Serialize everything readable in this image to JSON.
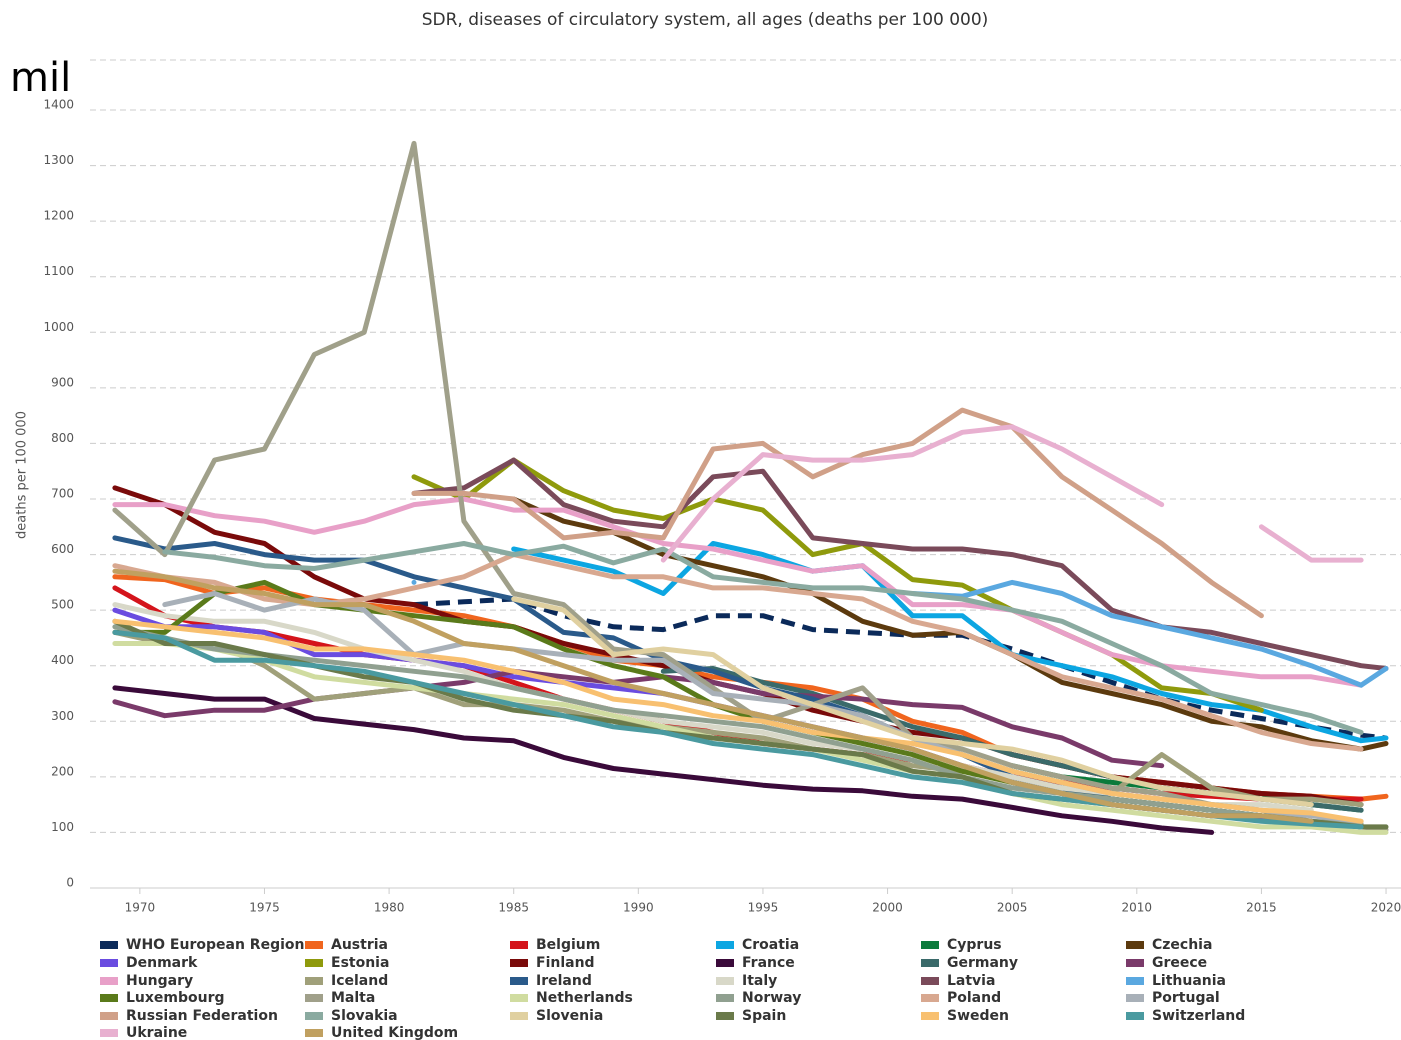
{
  "chart_data": {
    "type": "line",
    "title": "SDR, diseases of circulatory system, all ages (deaths per 100 000)",
    "y_label": "deaths per 100 000",
    "annotation": "mil",
    "xlim": [
      1968,
      2020.6
    ],
    "xticks": [
      1970,
      1975,
      1980,
      1985,
      1990,
      1995,
      2000,
      2005,
      2010,
      2015,
      2020
    ],
    "ylim": [
      0,
      1490
    ],
    "yticks": [
      0,
      100,
      200,
      300,
      400,
      500,
      600,
      700,
      800,
      900,
      1000,
      1100,
      1200,
      1300,
      1400
    ],
    "grid": true,
    "x": [
      1969,
      1971,
      1973,
      1975,
      1977,
      1979,
      1981,
      1983,
      1985,
      1987,
      1989,
      1991,
      1993,
      1995,
      1997,
      1999,
      2001,
      2003,
      2005,
      2007,
      2009,
      2011,
      2013,
      2015,
      2017,
      2019,
      2020
    ],
    "series": [
      {
        "name": "WHO European Region",
        "color": "#0b2a5a",
        "dashed": true,
        "values": [
          null,
          null,
          null,
          null,
          null,
          null,
          510,
          515,
          520,
          490,
          470,
          465,
          490,
          490,
          465,
          460,
          455,
          455,
          430,
          400,
          370,
          340,
          320,
          305,
          290,
          275,
          270
        ]
      },
      {
        "name": "Austria",
        "color": "#f0651e",
        "values": [
          560,
          555,
          530,
          540,
          520,
          510,
          500,
          490,
          470,
          440,
          410,
          400,
          380,
          370,
          360,
          340,
          300,
          280,
          240,
          220,
          200,
          190,
          180,
          170,
          165,
          160,
          165
        ]
      },
      {
        "name": "Belgium",
        "color": "#d4141b",
        "values": [
          540,
          490,
          470,
          460,
          440,
          420,
          410,
          400,
          370,
          340,
          320,
          300,
          280,
          260,
          250,
          240,
          230,
          220,
          200,
          190,
          180,
          170,
          165,
          160,
          160,
          160,
          null
        ]
      },
      {
        "name": "Croatia",
        "color": "#0ca6e2",
        "values": [
          null,
          null,
          null,
          null,
          null,
          null,
          null,
          null,
          610,
          590,
          570,
          530,
          620,
          600,
          570,
          580,
          490,
          490,
          420,
          400,
          380,
          350,
          330,
          320,
          290,
          265,
          270
        ]
      },
      {
        "name": "Cyprus",
        "color": "#0b7a3b",
        "values": [
          null,
          null,
          null,
          null,
          null,
          null,
          null,
          null,
          null,
          null,
          null,
          null,
          null,
          null,
          null,
          null,
          null,
          null,
          220,
          200,
          190,
          180,
          170,
          170,
          150,
          140,
          null
        ]
      },
      {
        "name": "Czechia",
        "color": "#5c3a0e",
        "values": [
          null,
          null,
          null,
          null,
          null,
          null,
          null,
          null,
          700,
          660,
          640,
          600,
          580,
          560,
          530,
          480,
          455,
          460,
          420,
          370,
          350,
          330,
          300,
          290,
          265,
          250,
          260
        ]
      },
      {
        "name": "Denmark",
        "color": "#6a4ce0",
        "values": [
          500,
          470,
          470,
          460,
          420,
          420,
          410,
          400,
          380,
          370,
          360,
          350,
          330,
          310,
          290,
          270,
          250,
          220,
          190,
          170,
          150,
          140,
          130,
          125,
          120,
          null,
          null
        ]
      },
      {
        "name": "Estonia",
        "color": "#8f9a0c",
        "values": [
          null,
          null,
          null,
          null,
          null,
          null,
          740,
          700,
          770,
          715,
          680,
          665,
          700,
          680,
          600,
          620,
          555,
          545,
          500,
          460,
          420,
          360,
          350,
          320,
          null,
          null,
          null
        ]
      },
      {
        "name": "Finland",
        "color": "#7a0a0a",
        "values": [
          720,
          690,
          640,
          620,
          560,
          520,
          510,
          480,
          470,
          440,
          420,
          400,
          370,
          350,
          320,
          300,
          280,
          270,
          240,
          220,
          200,
          190,
          180,
          170,
          165,
          150,
          null
        ]
      },
      {
        "name": "France",
        "color": "#3a0a3a",
        "values": [
          360,
          350,
          340,
          340,
          305,
          295,
          285,
          270,
          265,
          235,
          215,
          205,
          195,
          185,
          178,
          175,
          165,
          160,
          145,
          130,
          120,
          108,
          100,
          null,
          null,
          null,
          null
        ]
      },
      {
        "name": "Germany",
        "color": "#3a6a6a",
        "values": [
          null,
          null,
          null,
          null,
          null,
          null,
          null,
          null,
          null,
          null,
          null,
          390,
          395,
          370,
          350,
          320,
          290,
          270,
          240,
          220,
          200,
          180,
          170,
          160,
          150,
          140,
          null
        ]
      },
      {
        "name": "Greece",
        "color": "#7a3a6a",
        "values": [
          335,
          310,
          320,
          320,
          340,
          350,
          360,
          370,
          390,
          380,
          370,
          380,
          370,
          350,
          345,
          340,
          330,
          325,
          290,
          270,
          230,
          220,
          null,
          null,
          null,
          null,
          null
        ]
      },
      {
        "name": "Hungary",
        "color": "#e8a0c8",
        "values": [
          690,
          690,
          670,
          660,
          640,
          660,
          690,
          700,
          680,
          680,
          650,
          620,
          610,
          590,
          570,
          580,
          510,
          510,
          500,
          460,
          420,
          400,
          390,
          380,
          380,
          365,
          null
        ]
      },
      {
        "name": "Iceland",
        "color": "#a0a07a",
        "values": [
          460,
          440,
          440,
          400,
          340,
          350,
          360,
          330,
          330,
          320,
          300,
          290,
          280,
          270,
          250,
          240,
          220,
          210,
          200,
          180,
          170,
          240,
          180,
          160,
          160,
          150,
          null
        ]
      },
      {
        "name": "Ireland",
        "color": "#2a5a8a",
        "values": [
          630,
          610,
          620,
          600,
          590,
          590,
          560,
          540,
          520,
          460,
          450,
          410,
          390,
          360,
          340,
          310,
          270,
          240,
          200,
          180,
          160,
          150,
          140,
          130,
          120,
          null,
          null
        ]
      },
      {
        "name": "Italy",
        "color": "#d8d8c8",
        "values": [
          510,
          490,
          480,
          480,
          460,
          430,
          410,
          390,
          360,
          340,
          320,
          300,
          290,
          280,
          260,
          250,
          230,
          220,
          200,
          180,
          170,
          160,
          150,
          150,
          140,
          null,
          null
        ]
      },
      {
        "name": "Latvia",
        "color": "#7a4a5a",
        "values": [
          null,
          null,
          null,
          null,
          null,
          null,
          710,
          720,
          770,
          690,
          660,
          650,
          740,
          750,
          630,
          620,
          610,
          610,
          600,
          580,
          500,
          470,
          460,
          440,
          420,
          400,
          395
        ]
      },
      {
        "name": "Lithuania",
        "color": "#5aa8e0",
        "values": [
          null,
          null,
          null,
          null,
          null,
          null,
          550,
          null,
          null,
          null,
          null,
          null,
          null,
          null,
          null,
          null,
          530,
          525,
          550,
          530,
          490,
          470,
          450,
          430,
          400,
          365,
          395
        ]
      },
      {
        "name": "Luxembourg",
        "color": "#5a7a1a",
        "values": [
          460,
          460,
          530,
          550,
          510,
          500,
          490,
          480,
          470,
          430,
          400,
          380,
          330,
          300,
          280,
          260,
          240,
          210,
          190,
          170,
          160,
          150,
          140,
          130,
          120,
          110,
          null
        ]
      },
      {
        "name": "Malta",
        "color": "#a0a08a",
        "values": [
          680,
          600,
          770,
          790,
          960,
          1000,
          1340,
          660,
          530,
          510,
          430,
          420,
          360,
          300,
          330,
          360,
          270,
          250,
          220,
          200,
          180,
          170,
          150,
          140,
          120,
          110,
          105
        ]
      },
      {
        "name": "Netherlands",
        "color": "#d0dca0",
        "values": [
          440,
          440,
          430,
          410,
          380,
          370,
          360,
          350,
          340,
          330,
          310,
          290,
          270,
          260,
          250,
          230,
          210,
          200,
          170,
          150,
          140,
          130,
          120,
          110,
          110,
          100,
          100
        ]
      },
      {
        "name": "Norway",
        "color": "#90a090",
        "values": [
          470,
          450,
          430,
          420,
          410,
          400,
          390,
          380,
          360,
          340,
          320,
          310,
          300,
          290,
          270,
          250,
          230,
          200,
          180,
          170,
          160,
          150,
          140,
          130,
          120,
          115,
          null
        ]
      },
      {
        "name": "Poland",
        "color": "#d8a890",
        "values": [
          580,
          560,
          550,
          520,
          510,
          520,
          540,
          560,
          600,
          580,
          560,
          560,
          540,
          540,
          530,
          520,
          480,
          460,
          420,
          380,
          360,
          340,
          310,
          280,
          260,
          250,
          null
        ]
      },
      {
        "name": "Portugal",
        "color": "#a8b0b8",
        "values": [
          null,
          510,
          530,
          500,
          520,
          500,
          420,
          440,
          430,
          420,
          410,
          410,
          350,
          340,
          330,
          310,
          270,
          240,
          210,
          190,
          170,
          160,
          150,
          140,
          130,
          120,
          null
        ]
      },
      {
        "name": "Russian Federation",
        "color": "#d0a088",
        "values": [
          null,
          null,
          null,
          null,
          null,
          null,
          710,
          710,
          700,
          630,
          640,
          630,
          790,
          800,
          740,
          780,
          800,
          860,
          830,
          740,
          680,
          620,
          550,
          490,
          null,
          null,
          null
        ]
      },
      {
        "name": "Slovakia",
        "color": "#8aaaa0",
        "values": [
          null,
          605,
          595,
          580,
          575,
          590,
          605,
          620,
          600,
          615,
          585,
          610,
          560,
          550,
          540,
          540,
          530,
          520,
          500,
          480,
          440,
          400,
          350,
          330,
          310,
          280,
          null
        ]
      },
      {
        "name": "Slovenia",
        "color": "#e0d0a0",
        "values": [
          null,
          null,
          null,
          null,
          null,
          null,
          null,
          null,
          520,
          500,
          420,
          430,
          420,
          360,
          330,
          300,
          270,
          260,
          250,
          230,
          200,
          180,
          170,
          160,
          150,
          null,
          null
        ]
      },
      {
        "name": "Spain",
        "color": "#6a7a4a",
        "values": [
          480,
          440,
          440,
          420,
          400,
          380,
          370,
          340,
          320,
          310,
          300,
          280,
          270,
          260,
          250,
          240,
          210,
          200,
          170,
          160,
          150,
          140,
          130,
          130,
          120,
          110,
          110
        ]
      },
      {
        "name": "Sweden",
        "color": "#f8c070",
        "values": [
          480,
          470,
          460,
          450,
          430,
          430,
          420,
          410,
          390,
          370,
          340,
          330,
          310,
          300,
          280,
          270,
          260,
          240,
          210,
          190,
          170,
          160,
          150,
          140,
          135,
          120,
          null
        ]
      },
      {
        "name": "Switzerland",
        "color": "#4a9aa0",
        "values": [
          460,
          450,
          410,
          410,
          400,
          390,
          370,
          350,
          330,
          310,
          290,
          280,
          260,
          250,
          240,
          220,
          200,
          190,
          170,
          160,
          150,
          140,
          130,
          120,
          115,
          110,
          null
        ]
      },
      {
        "name": "Ukraine",
        "color": "#e8b0d0",
        "values": [
          null,
          null,
          null,
          null,
          null,
          null,
          null,
          null,
          null,
          null,
          null,
          590,
          700,
          780,
          770,
          770,
          780,
          820,
          830,
          790,
          740,
          690,
          null,
          650,
          590,
          590,
          null
        ]
      },
      {
        "name": "United Kingdom",
        "color": "#c0a060",
        "values": [
          570,
          560,
          540,
          530,
          510,
          510,
          480,
          440,
          430,
          400,
          370,
          350,
          330,
          310,
          290,
          270,
          250,
          220,
          190,
          170,
          150,
          140,
          130,
          130,
          120,
          null,
          null
        ]
      }
    ]
  }
}
